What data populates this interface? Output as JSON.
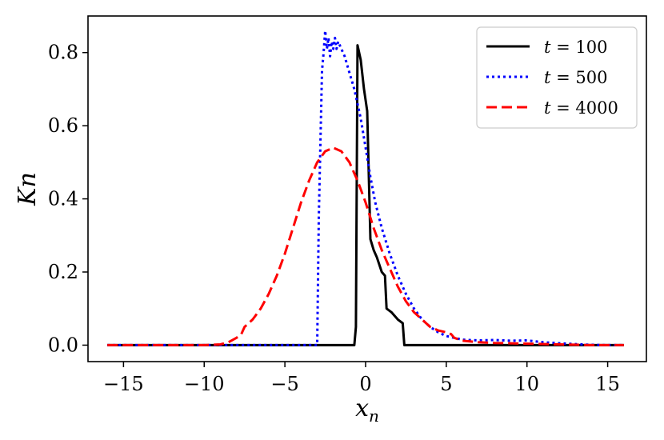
{
  "chart_data": {
    "type": "line",
    "xlabel": "x_n",
    "ylabel": "Kn",
    "xlim": [
      -17.2,
      17.4
    ],
    "ylim": [
      -0.045,
      0.9
    ],
    "xticks": [
      -15,
      -10,
      -5,
      0,
      5,
      10,
      15
    ],
    "xtick_labels": [
      "−15",
      "−10",
      "−5",
      "0",
      "5",
      "10",
      "15"
    ],
    "yticks": [
      0.0,
      0.2,
      0.4,
      0.6,
      0.8
    ],
    "ytick_labels": [
      "0.0",
      "0.2",
      "0.4",
      "0.6",
      "0.8"
    ],
    "grid": false,
    "legend_position": "top-right",
    "series": [
      {
        "name": "t = 100",
        "label_var": "t",
        "label_value": "100",
        "color": "#000000",
        "style": "solid",
        "x": [
          -16,
          -0.7,
          -0.6,
          -0.5,
          -0.4,
          -0.3,
          -0.1,
          0.1,
          0.3,
          0.5,
          0.7,
          1.0,
          1.2,
          1.3,
          1.6,
          2.0,
          2.3,
          2.4,
          16
        ],
        "y": [
          0.0,
          0.0,
          0.05,
          0.82,
          0.8,
          0.78,
          0.7,
          0.64,
          0.29,
          0.26,
          0.24,
          0.2,
          0.19,
          0.1,
          0.09,
          0.07,
          0.06,
          0.0,
          0.0
        ]
      },
      {
        "name": "t = 500",
        "label_var": "t",
        "label_value": "500",
        "color": "#0000ff",
        "style": "dotted",
        "x": [
          -16,
          -3.0,
          -2.9,
          -2.8,
          -2.7,
          -2.6,
          -2.5,
          -2.4,
          -2.3,
          -2.2,
          -2.1,
          -2.0,
          -1.9,
          -1.8,
          -1.7,
          -1.5,
          -1.3,
          -1.1,
          -0.9,
          -0.7,
          -0.5,
          -0.3,
          0,
          0.3,
          0.6,
          1.0,
          1.5,
          2.0,
          2.5,
          3.0,
          3.5,
          4.0,
          4.5,
          5.0,
          5.5,
          6.0,
          7.0,
          8.0,
          9.0,
          10.0,
          11.0,
          12.0,
          13.0,
          14.0,
          15.0,
          16
        ],
        "y": [
          0.0,
          0.0,
          0.35,
          0.55,
          0.75,
          0.8,
          0.86,
          0.81,
          0.84,
          0.79,
          0.83,
          0.81,
          0.84,
          0.81,
          0.83,
          0.81,
          0.79,
          0.76,
          0.73,
          0.7,
          0.66,
          0.62,
          0.54,
          0.46,
          0.39,
          0.32,
          0.25,
          0.19,
          0.14,
          0.1,
          0.07,
          0.05,
          0.035,
          0.025,
          0.02,
          0.015,
          0.013,
          0.014,
          0.012,
          0.013,
          0.008,
          0.005,
          0.003,
          0.001,
          0.0,
          0.0
        ]
      },
      {
        "name": "t = 4000",
        "label_var": "t",
        "label_value": "4000",
        "color": "#ff0000",
        "style": "dashed",
        "x": [
          -16,
          -10,
          -9,
          -8.5,
          -8.0,
          -7.7,
          -7.5,
          -7.0,
          -6.5,
          -6.0,
          -5.5,
          -5.0,
          -4.5,
          -4.0,
          -3.5,
          -3.0,
          -2.5,
          -2.0,
          -1.5,
          -1.0,
          -0.5,
          0,
          0.5,
          1.0,
          1.5,
          2.0,
          2.5,
          3.0,
          3.5,
          4.0,
          4.5,
          5.0,
          5.3,
          5.5,
          6.0,
          7.0,
          8.0,
          9.0,
          10.0,
          12.0,
          14.0,
          16
        ],
        "y": [
          0.0,
          0.0,
          0.002,
          0.008,
          0.02,
          0.03,
          0.05,
          0.07,
          0.1,
          0.14,
          0.19,
          0.25,
          0.32,
          0.39,
          0.45,
          0.5,
          0.53,
          0.54,
          0.53,
          0.5,
          0.45,
          0.39,
          0.32,
          0.26,
          0.21,
          0.16,
          0.12,
          0.09,
          0.07,
          0.05,
          0.04,
          0.035,
          0.03,
          0.02,
          0.012,
          0.008,
          0.006,
          0.005,
          0.004,
          0.002,
          0.0,
          0.0
        ]
      }
    ]
  }
}
